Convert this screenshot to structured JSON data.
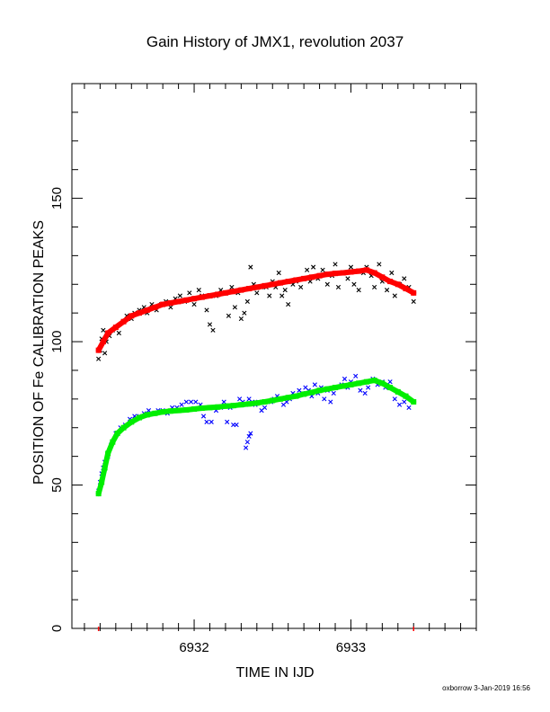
{
  "chart_data": {
    "type": "scatter",
    "title": "Gain History of JMX1, revolution 2037",
    "xlabel": "TIME IN IJD",
    "ylabel": "POSITION OF Fe CALIBRATION PEAKS",
    "xlim": [
      6931.22,
      6933.8
    ],
    "ylim": [
      0,
      190
    ],
    "x_ticks": [
      6932,
      6933
    ],
    "y_ticks": [
      0,
      50,
      100,
      150
    ],
    "x_tick_labels": [
      "6932",
      "6933"
    ],
    "y_tick_labels": [
      "0",
      "50",
      "100",
      "150"
    ],
    "red_markers_x": [
      6931.39,
      6933.4
    ],
    "grid": false,
    "legend": "none",
    "credit": "oxborrow  3-Jan-2019 16:56",
    "series": [
      {
        "marker": "x",
        "color": "#000000",
        "points": [
          [
            6931.39,
            94
          ],
          [
            6931.4,
            97
          ],
          [
            6931.41,
            101
          ],
          [
            6931.42,
            104
          ],
          [
            6931.43,
            96
          ],
          [
            6931.44,
            100
          ],
          [
            6931.46,
            102
          ],
          [
            6931.48,
            104
          ],
          [
            6931.5,
            105
          ],
          [
            6931.52,
            103
          ],
          [
            6931.55,
            107
          ],
          [
            6931.57,
            109
          ],
          [
            6931.6,
            108
          ],
          [
            6931.62,
            110
          ],
          [
            6931.65,
            111
          ],
          [
            6931.68,
            112
          ],
          [
            6931.7,
            110
          ],
          [
            6931.73,
            113
          ],
          [
            6931.76,
            111
          ],
          [
            6931.79,
            113
          ],
          [
            6931.82,
            114
          ],
          [
            6931.85,
            112
          ],
          [
            6931.88,
            115
          ],
          [
            6931.91,
            116
          ],
          [
            6931.94,
            114
          ],
          [
            6931.97,
            117
          ],
          [
            6932.0,
            113
          ],
          [
            6932.03,
            118
          ],
          [
            6932.05,
            116
          ],
          [
            6932.08,
            111
          ],
          [
            6932.1,
            106
          ],
          [
            6932.12,
            104
          ],
          [
            6932.14,
            116
          ],
          [
            6932.17,
            118
          ],
          [
            6932.2,
            117
          ],
          [
            6932.22,
            109
          ],
          [
            6932.24,
            119
          ],
          [
            6932.26,
            112
          ],
          [
            6932.28,
            117
          ],
          [
            6932.3,
            108
          ],
          [
            6932.32,
            110
          ],
          [
            6932.34,
            114
          ],
          [
            6932.36,
            126
          ],
          [
            6932.38,
            120
          ],
          [
            6932.4,
            117
          ],
          [
            6932.43,
            119
          ],
          [
            6932.46,
            119
          ],
          [
            6932.48,
            116
          ],
          [
            6932.5,
            121
          ],
          [
            6932.52,
            119
          ],
          [
            6932.54,
            124
          ],
          [
            6932.56,
            116
          ],
          [
            6932.58,
            118
          ],
          [
            6932.6,
            113
          ],
          [
            6932.63,
            120
          ],
          [
            6932.65,
            121
          ],
          [
            6932.68,
            119
          ],
          [
            6932.7,
            122
          ],
          [
            6932.72,
            125
          ],
          [
            6932.74,
            121
          ],
          [
            6932.76,
            126
          ],
          [
            6932.79,
            122
          ],
          [
            6932.82,
            125
          ],
          [
            6932.85,
            120
          ],
          [
            6932.88,
            123
          ],
          [
            6932.9,
            127
          ],
          [
            6932.92,
            119
          ],
          [
            6932.95,
            124
          ],
          [
            6932.98,
            122
          ],
          [
            6933.0,
            126
          ],
          [
            6933.02,
            120
          ],
          [
            6933.05,
            118
          ],
          [
            6933.08,
            124
          ],
          [
            6933.1,
            126
          ],
          [
            6933.13,
            123
          ],
          [
            6933.15,
            119
          ],
          [
            6933.18,
            127
          ],
          [
            6933.2,
            121
          ],
          [
            6933.23,
            118
          ],
          [
            6933.26,
            124
          ],
          [
            6933.28,
            116
          ],
          [
            6933.31,
            120
          ],
          [
            6933.34,
            122
          ],
          [
            6933.37,
            119
          ],
          [
            6933.4,
            114
          ]
        ]
      },
      {
        "marker": "x",
        "color": "#0000ff",
        "points": [
          [
            6931.39,
            48
          ],
          [
            6931.4,
            51
          ],
          [
            6931.41,
            54
          ],
          [
            6931.42,
            56
          ],
          [
            6931.43,
            58
          ],
          [
            6931.45,
            60
          ],
          [
            6931.47,
            64
          ],
          [
            6931.5,
            68
          ],
          [
            6931.53,
            70
          ],
          [
            6931.56,
            71
          ],
          [
            6931.59,
            73
          ],
          [
            6931.62,
            74
          ],
          [
            6931.65,
            74
          ],
          [
            6931.68,
            75
          ],
          [
            6931.71,
            76
          ],
          [
            6931.74,
            75
          ],
          [
            6931.77,
            76
          ],
          [
            6931.8,
            76
          ],
          [
            6931.83,
            75
          ],
          [
            6931.86,
            77
          ],
          [
            6931.89,
            77
          ],
          [
            6931.92,
            78
          ],
          [
            6931.95,
            79
          ],
          [
            6931.98,
            79
          ],
          [
            6932.01,
            79
          ],
          [
            6932.04,
            78
          ],
          [
            6932.06,
            74
          ],
          [
            6932.08,
            72
          ],
          [
            6932.11,
            72
          ],
          [
            6932.14,
            76
          ],
          [
            6932.17,
            77
          ],
          [
            6932.19,
            79
          ],
          [
            6932.21,
            72
          ],
          [
            6932.23,
            77
          ],
          [
            6932.25,
            71
          ],
          [
            6932.27,
            71
          ],
          [
            6932.29,
            80
          ],
          [
            6932.31,
            79
          ],
          [
            6932.33,
            78
          ],
          [
            6932.35,
            80
          ],
          [
            6932.37,
            79
          ],
          [
            6932.39,
            78
          ],
          [
            6932.41,
            79
          ],
          [
            6932.43,
            76
          ],
          [
            6932.45,
            77
          ],
          [
            6932.47,
            79
          ],
          [
            6932.49,
            79
          ],
          [
            6932.51,
            80
          ],
          [
            6932.53,
            81
          ],
          [
            6932.55,
            80
          ],
          [
            6932.57,
            78
          ],
          [
            6932.59,
            79
          ],
          [
            6932.61,
            80
          ],
          [
            6932.63,
            82
          ],
          [
            6932.65,
            81
          ],
          [
            6932.67,
            83
          ],
          [
            6932.69,
            82
          ],
          [
            6932.71,
            84
          ],
          [
            6932.73,
            83
          ],
          [
            6932.75,
            81
          ],
          [
            6932.77,
            85
          ],
          [
            6932.79,
            82
          ],
          [
            6932.81,
            84
          ],
          [
            6932.83,
            80
          ],
          [
            6932.85,
            83
          ],
          [
            6932.87,
            79
          ],
          [
            6932.89,
            82
          ],
          [
            6932.91,
            84
          ],
          [
            6932.94,
            85
          ],
          [
            6932.96,
            87
          ],
          [
            6932.98,
            84
          ],
          [
            6933.0,
            86
          ],
          [
            6933.03,
            88
          ],
          [
            6933.06,
            83
          ],
          [
            6933.09,
            82
          ],
          [
            6933.11,
            84
          ],
          [
            6933.14,
            87
          ],
          [
            6933.17,
            85
          ],
          [
            6933.2,
            86
          ],
          [
            6933.22,
            84
          ],
          [
            6933.25,
            86
          ],
          [
            6933.28,
            80
          ],
          [
            6933.31,
            78
          ],
          [
            6933.34,
            79
          ],
          [
            6933.37,
            77
          ]
        ]
      },
      {
        "marker": "x",
        "color": "#0000ff",
        "points": [
          [
            6932.33,
            63
          ],
          [
            6932.34,
            65
          ],
          [
            6932.35,
            67
          ],
          [
            6932.36,
            68
          ]
        ]
      }
    ],
    "fits": [
      {
        "color": "#ff0000",
        "points": [
          [
            6931.39,
            97
          ],
          [
            6931.42,
            100
          ],
          [
            6931.45,
            103
          ],
          [
            6931.5,
            105
          ],
          [
            6931.55,
            107
          ],
          [
            6931.6,
            109
          ],
          [
            6931.65,
            110
          ],
          [
            6931.7,
            111
          ],
          [
            6931.75,
            112
          ],
          [
            6931.8,
            113
          ],
          [
            6931.85,
            113.5
          ],
          [
            6931.9,
            114
          ],
          [
            6931.95,
            114.5
          ],
          [
            6932.0,
            115
          ],
          [
            6932.05,
            115.5
          ],
          [
            6932.1,
            116
          ],
          [
            6932.15,
            116.5
          ],
          [
            6932.2,
            117
          ],
          [
            6932.25,
            117.5
          ],
          [
            6932.3,
            118
          ],
          [
            6932.35,
            118.5
          ],
          [
            6932.4,
            119
          ],
          [
            6932.45,
            119.5
          ],
          [
            6932.5,
            120
          ],
          [
            6932.55,
            120.5
          ],
          [
            6932.6,
            121
          ],
          [
            6932.65,
            121.5
          ],
          [
            6932.7,
            122
          ],
          [
            6932.75,
            122.5
          ],
          [
            6932.8,
            123
          ],
          [
            6932.85,
            123.5
          ],
          [
            6932.9,
            123.8
          ],
          [
            6932.95,
            124
          ],
          [
            6933.0,
            124.3
          ],
          [
            6933.05,
            124.6
          ],
          [
            6933.1,
            125
          ],
          [
            6933.15,
            124
          ],
          [
            6933.2,
            122.5
          ],
          [
            6933.25,
            121
          ],
          [
            6933.3,
            120
          ],
          [
            6933.35,
            118.5
          ],
          [
            6933.4,
            117
          ]
        ]
      },
      {
        "color": "#00ee00",
        "points": [
          [
            6931.39,
            47
          ],
          [
            6931.41,
            51
          ],
          [
            6931.43,
            56
          ],
          [
            6931.45,
            61
          ],
          [
            6931.48,
            65
          ],
          [
            6931.51,
            68
          ],
          [
            6931.55,
            70
          ],
          [
            6931.6,
            72
          ],
          [
            6931.65,
            73.5
          ],
          [
            6931.7,
            74.5
          ],
          [
            6931.75,
            75
          ],
          [
            6931.8,
            75.5
          ],
          [
            6931.85,
            75.8
          ],
          [
            6931.9,
            76
          ],
          [
            6931.95,
            76.2
          ],
          [
            6932.0,
            76.5
          ],
          [
            6932.05,
            76.8
          ],
          [
            6932.1,
            77
          ],
          [
            6932.15,
            77.2
          ],
          [
            6932.2,
            77.5
          ],
          [
            6932.25,
            77.7
          ],
          [
            6932.3,
            78
          ],
          [
            6932.35,
            78.3
          ],
          [
            6932.4,
            78.6
          ],
          [
            6932.45,
            79
          ],
          [
            6932.5,
            79.5
          ],
          [
            6932.55,
            80
          ],
          [
            6932.6,
            80.5
          ],
          [
            6932.65,
            81
          ],
          [
            6932.7,
            81.7
          ],
          [
            6932.75,
            82.3
          ],
          [
            6932.8,
            83
          ],
          [
            6932.85,
            83.5
          ],
          [
            6932.9,
            84
          ],
          [
            6932.95,
            84.5
          ],
          [
            6933.0,
            85
          ],
          [
            6933.05,
            85.5
          ],
          [
            6933.1,
            86
          ],
          [
            6933.15,
            86.5
          ],
          [
            6933.2,
            85.5
          ],
          [
            6933.25,
            84
          ],
          [
            6933.3,
            82.5
          ],
          [
            6933.35,
            81
          ],
          [
            6933.4,
            79
          ]
        ]
      }
    ]
  }
}
